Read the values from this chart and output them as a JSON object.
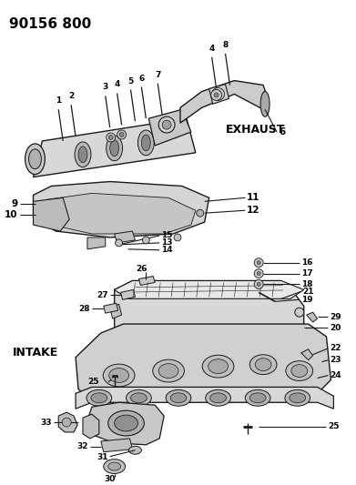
{
  "title": "90156 800",
  "bg_color": "#ffffff",
  "title_fontsize": 10,
  "exhaust_label": "EXHAUST",
  "intake_label": "INTAKE",
  "line_color": "#1a1a1a",
  "part_fontsize": 7.5,
  "part_fontsize_small": 6.5
}
